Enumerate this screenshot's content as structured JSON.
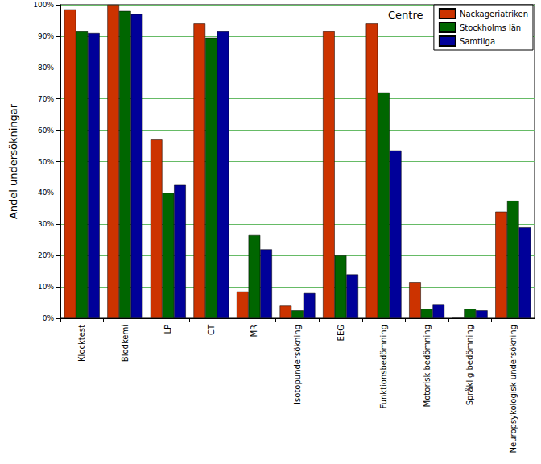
{
  "chart_data": {
    "type": "bar",
    "title": "Centre",
    "y_label": "Andel undersökningar",
    "categories": [
      "Klocktest",
      "Blodkemi",
      "LP",
      "CT",
      "MR",
      "Isotopundersökning",
      "EEG",
      "Funktionsbedömning",
      "Motorisk bedömning",
      "Språklig bedömning",
      "Neuropsykologisk undersökning"
    ],
    "series": [
      {
        "name": "Nackageriatriken",
        "color": "#cc3300",
        "values": [
          98.5,
          100,
          57,
          94,
          8.5,
          4,
          91.5,
          94,
          11.5,
          0,
          34
        ]
      },
      {
        "name": "Stockholms län",
        "color": "#006600",
        "values": [
          91.5,
          98,
          40,
          89.5,
          26.5,
          2.5,
          20,
          72,
          3,
          3,
          37.5
        ]
      },
      {
        "name": "Samtliga",
        "color": "#000099",
        "values": [
          91,
          97,
          42.5,
          91.5,
          22,
          8,
          14,
          53.5,
          4.5,
          2.5,
          29
        ]
      }
    ],
    "ylim": [
      0,
      100
    ],
    "yticks": [
      {
        "value": 0,
        "label": "0%"
      },
      {
        "value": 10,
        "label": "10%"
      },
      {
        "value": 20,
        "label": "20%"
      },
      {
        "value": 30,
        "label": "30%"
      },
      {
        "value": 40,
        "label": "40%"
      },
      {
        "value": 50,
        "label": "50%"
      },
      {
        "value": 60,
        "label": "60%"
      },
      {
        "value": 70,
        "label": "70%"
      },
      {
        "value": 80,
        "label": "80%"
      },
      {
        "value": 90,
        "label": "90%"
      },
      {
        "value": 100,
        "label": "100%"
      }
    ],
    "grid": true,
    "legend": "top-right"
  }
}
